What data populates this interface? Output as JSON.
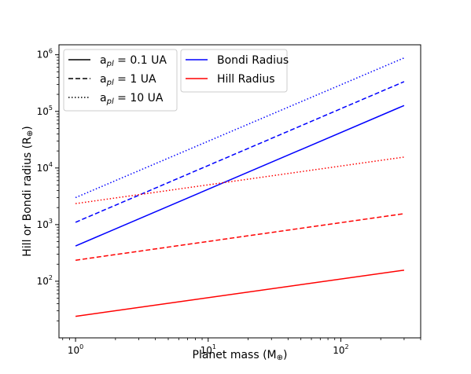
{
  "chart_data": {
    "type": "line",
    "xlabel": "Planet mass (M",
    "xlabel_symbol": "⊕",
    "xlabel_suffix": ")",
    "ylabel": "Hill or Bondi radius (R",
    "ylabel_symbol": "⊕",
    "ylabel_suffix": ")",
    "xscale": "log",
    "yscale": "log",
    "xlim": [
      0.75,
      400
    ],
    "ylim": [
      10,
      1500000
    ],
    "grid": false,
    "x_ticks": [
      {
        "value": 1,
        "base": "10",
        "exp": "0"
      },
      {
        "value": 10,
        "base": "10",
        "exp": "1"
      },
      {
        "value": 100,
        "base": "10",
        "exp": "2"
      }
    ],
    "y_ticks": [
      {
        "value": 100,
        "base": "10",
        "exp": "2"
      },
      {
        "value": 1000,
        "base": "10",
        "exp": "3"
      },
      {
        "value": 10000,
        "base": "10",
        "exp": "4"
      },
      {
        "value": 100000,
        "base": "10",
        "exp": "5"
      },
      {
        "value": 1000000,
        "base": "10",
        "exp": "6"
      }
    ],
    "series": [
      {
        "radius": "Bondi",
        "a_pl": "0.1 UA",
        "color": "#0000ff",
        "style": "solid",
        "x": [
          1,
          300
        ],
        "y": [
          420,
          127000
        ]
      },
      {
        "radius": "Bondi",
        "a_pl": "1 UA",
        "color": "#0000ff",
        "style": "dashed",
        "x": [
          1,
          300
        ],
        "y": [
          1100,
          335000
        ]
      },
      {
        "radius": "Bondi",
        "a_pl": "10 UA",
        "color": "#0000ff",
        "style": "dotted",
        "x": [
          1,
          300
        ],
        "y": [
          3000,
          880000
        ]
      },
      {
        "radius": "Hill",
        "a_pl": "0.1 UA",
        "color": "#ff0000",
        "style": "solid",
        "x": [
          1,
          300
        ],
        "y": [
          24,
          157
        ]
      },
      {
        "radius": "Hill",
        "a_pl": "1 UA",
        "color": "#ff0000",
        "style": "dashed",
        "x": [
          1,
          300
        ],
        "y": [
          235,
          1560
        ]
      },
      {
        "radius": "Hill",
        "a_pl": "10 UA",
        "color": "#ff0000",
        "style": "dotted",
        "x": [
          1,
          300
        ],
        "y": [
          2350,
          15600
        ]
      }
    ],
    "legends": [
      {
        "placement": "top-left",
        "entries": [
          {
            "style": "solid",
            "color": "#000000",
            "label_prefix": "a",
            "label_sub": "pl",
            "label_suffix": " = 0.1 UA"
          },
          {
            "style": "dashed",
            "color": "#000000",
            "label_prefix": "a",
            "label_sub": "pl",
            "label_suffix": " = 1 UA"
          },
          {
            "style": "dotted",
            "color": "#000000",
            "label_prefix": "a",
            "label_sub": "pl",
            "label_suffix": " = 10 UA"
          }
        ]
      },
      {
        "placement": "top-left",
        "entries": [
          {
            "style": "solid",
            "color": "#0000ff",
            "label": "Bondi Radius"
          },
          {
            "style": "solid",
            "color": "#ff0000",
            "label": "Hill Radius"
          }
        ]
      }
    ]
  }
}
